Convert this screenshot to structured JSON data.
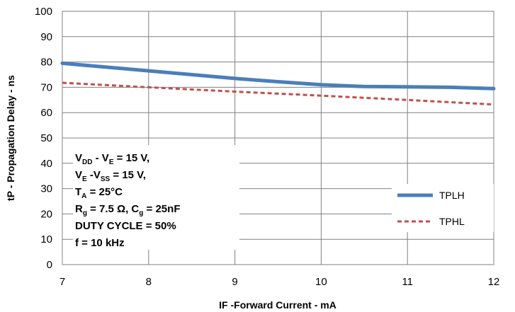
{
  "chart_data": {
    "type": "line",
    "xlabel": "IF -Forward Current - mA",
    "ylabel": "tP - Propagation Delay - ns",
    "xlim": [
      7,
      12
    ],
    "ylim": [
      0,
      100
    ],
    "x_ticks": [
      "7",
      "8",
      "9",
      "10",
      "11",
      "12"
    ],
    "y_ticks": [
      "0",
      "10",
      "20",
      "30",
      "40",
      "50",
      "60",
      "70",
      "80",
      "90",
      "100"
    ],
    "grid": true,
    "legend_position": "right",
    "series": [
      {
        "name": "TPLH",
        "color": "#4a7ebb",
        "style": "solid",
        "x": [
          7,
          7.5,
          8,
          8.5,
          9,
          9.5,
          10,
          10.5,
          11,
          11.5,
          12
        ],
        "y": [
          79.5,
          78.0,
          76.5,
          75.0,
          73.5,
          72.2,
          71.0,
          70.3,
          70.2,
          70.0,
          69.5
        ]
      },
      {
        "name": "TPHL",
        "color": "#c0504d",
        "style": "dashed",
        "x": [
          7,
          8,
          9,
          10,
          11,
          12
        ],
        "y": [
          71.8,
          70.0,
          68.3,
          66.7,
          65.0,
          63.2
        ]
      }
    ],
    "annotation": [
      [
        {
          "t": "V"
        },
        {
          "t": "DD",
          "sub": true
        },
        {
          "t": " - V"
        },
        {
          "t": "E",
          "sub": true
        },
        {
          "t": " = 15 V,"
        }
      ],
      [
        {
          "t": "V"
        },
        {
          "t": "E",
          "sub": true
        },
        {
          "t": " -V"
        },
        {
          "t": "SS",
          "sub": true
        },
        {
          "t": " = 15 V,"
        }
      ],
      [
        {
          "t": "T"
        },
        {
          "t": "A",
          "sub": true
        },
        {
          "t": " = 25°C"
        }
      ],
      [
        {
          "t": "R"
        },
        {
          "t": "g",
          "sub": true
        },
        {
          "t": " = 7.5 Ω, C"
        },
        {
          "t": "g",
          "sub": true
        },
        {
          "t": " = 25nF"
        }
      ],
      [
        {
          "t": "DUTY CYCLE = 50%"
        }
      ],
      [
        {
          "t": "f = 10 kHz"
        }
      ]
    ]
  }
}
